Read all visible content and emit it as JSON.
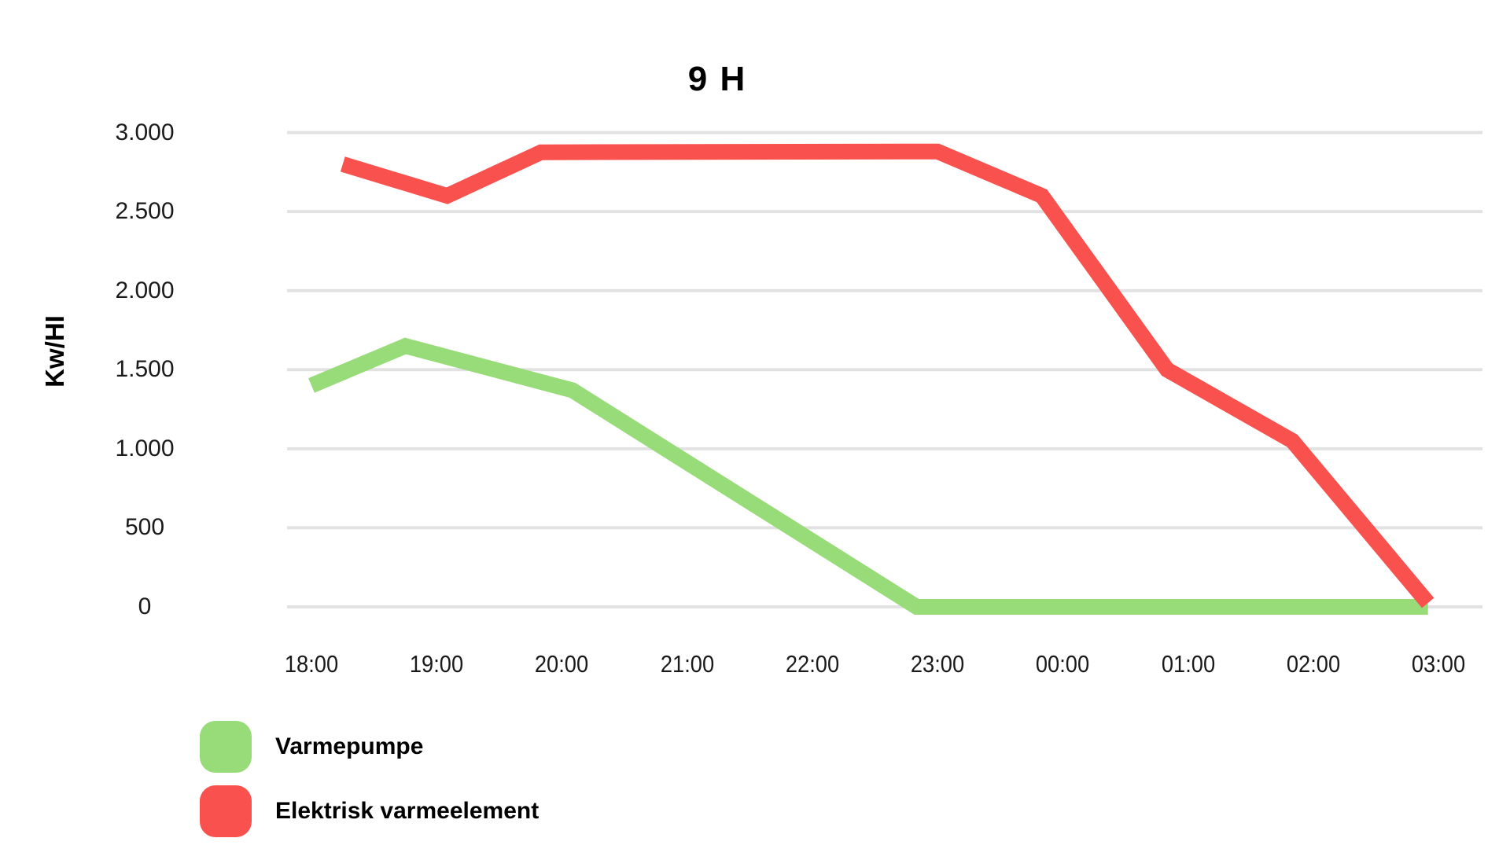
{
  "chart_data": {
    "type": "line",
    "title": "9 H",
    "xlabel": "",
    "ylabel": "Kw/HI",
    "grid": "horizontal-only",
    "legend_position": "bottom-left",
    "background": "#ffffff",
    "grid_color": "#e2e2e2",
    "x_axis": {
      "tick_labels": [
        "18:00",
        "19:00",
        "20:00",
        "21:00",
        "22:00",
        "23:00",
        "00:00",
        "01:00",
        "02:00",
        "03:00"
      ]
    },
    "y_axis": {
      "min": 0,
      "max": 3000,
      "step": 500,
      "tick_labels": [
        "0",
        "500",
        "1.000",
        "1.500",
        "2.000",
        "2.500",
        "3.000"
      ]
    },
    "series": [
      {
        "name": "Varmepumpe",
        "color": "#98DC7A",
        "points": [
          {
            "t": "18:00",
            "value": 1400
          },
          {
            "t": "18:45",
            "value": 1650
          },
          {
            "t": "20:05",
            "value": 1370
          },
          {
            "t": "22:50",
            "value": 0
          },
          {
            "t": "02:55",
            "value": 0
          }
        ]
      },
      {
        "name": "Elektrisk varmeelement",
        "color": "#F9524E",
        "points": [
          {
            "t": "18:15",
            "value": 2800
          },
          {
            "t": "19:05",
            "value": 2600
          },
          {
            "t": "19:50",
            "value": 2875
          },
          {
            "t": "23:00",
            "value": 2880
          },
          {
            "t": "23:50",
            "value": 2600
          },
          {
            "t": "00:50",
            "value": 1500
          },
          {
            "t": "01:50",
            "value": 1050
          },
          {
            "t": "02:55",
            "value": 25
          }
        ]
      }
    ]
  }
}
